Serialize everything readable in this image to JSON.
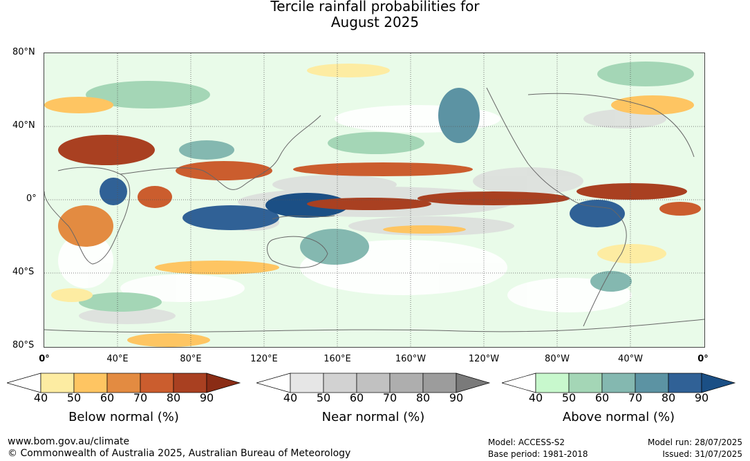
{
  "title_line1": "Tercile rainfall probabilities for",
  "title_line2": "August 2025",
  "map": {
    "lat_labels": [
      "80°N",
      "40°N",
      "0°",
      "40°S",
      "80°S"
    ],
    "lon_labels": [
      "0°",
      "40°E",
      "80°E",
      "120°E",
      "160°E",
      "160°W",
      "120°W",
      "80°W",
      "40°W",
      "0°"
    ]
  },
  "legends": [
    {
      "title": "Below normal (%)",
      "ticks": [
        "40",
        "50",
        "60",
        "70",
        "80",
        "90"
      ],
      "colors": [
        "#ffffff",
        "#fdeca2",
        "#fec562",
        "#e38b41",
        "#cb5d2e",
        "#a94021",
        "#8a2c15"
      ]
    },
    {
      "title": "Near normal (%)",
      "ticks": [
        "40",
        "50",
        "60",
        "70",
        "80",
        "90"
      ],
      "colors": [
        "#ffffff",
        "#e6e6e6",
        "#d2d2d2",
        "#c1c1c1",
        "#aeaeae",
        "#9c9c9c",
        "#7a7a7a"
      ]
    },
    {
      "title": "Above normal (%)",
      "ticks": [
        "40",
        "50",
        "60",
        "70",
        "80",
        "90"
      ],
      "colors": [
        "#ffffff",
        "#c8f8cd",
        "#a4d6b6",
        "#84b8b0",
        "#5c93a3",
        "#306196",
        "#1b4f85"
      ]
    }
  ],
  "footer": {
    "url": "www.bom.gov.au/climate",
    "copyright": "© Commonwealth of Australia 2025, Australian Bureau of Meteorology",
    "model": "Model: ACCESS-S2",
    "base_period": "Base period: 1981-2018",
    "model_run": "Model run: 28/07/2025",
    "issued": "Issued: 31/07/2025"
  }
}
